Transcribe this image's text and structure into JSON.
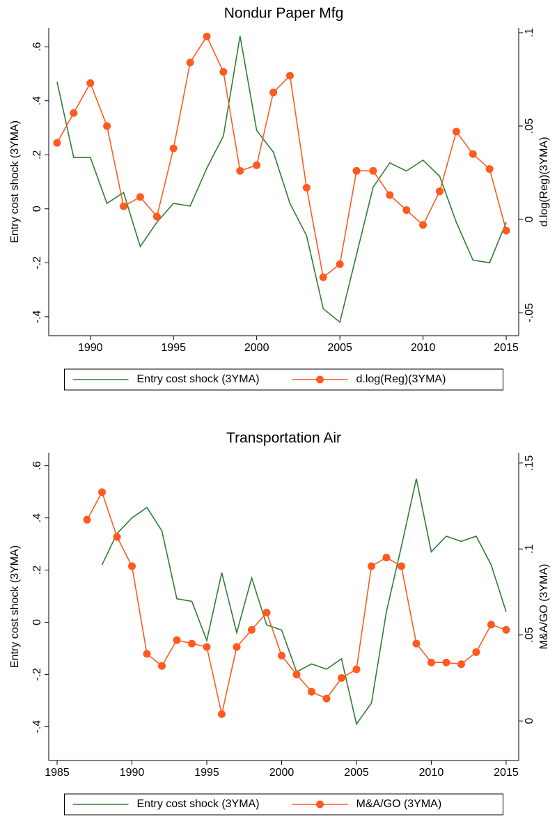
{
  "chart_data": [
    {
      "type": "line",
      "title": "Nondur Paper Mfg",
      "ylabel": "Entry cost shock (3YMA)",
      "y2label": "d.log(Reg)(3YMA)",
      "x": [
        1988,
        1989,
        1990,
        1991,
        1992,
        1993,
        1994,
        1995,
        1996,
        1997,
        1998,
        1999,
        2000,
        2001,
        2002,
        2003,
        2004,
        2005,
        2006,
        2007,
        2008,
        2009,
        2010,
        2011,
        2012,
        2013,
        2014,
        2015
      ],
      "series": [
        {
          "name": "Entry cost shock (3YMA)",
          "color": "#2e7d32",
          "marker": false,
          "axis": "y",
          "values": [
            0.47,
            0.19,
            0.19,
            0.02,
            0.06,
            -0.14,
            -0.05,
            0.02,
            0.01,
            0.15,
            0.27,
            0.64,
            0.29,
            0.21,
            0.02,
            -0.1,
            -0.37,
            -0.42,
            -0.17,
            0.08,
            0.17,
            0.14,
            0.18,
            0.12,
            -0.05,
            -0.19,
            -0.2,
            -0.05
          ]
        },
        {
          "name": "d.log(Reg)(3YMA)",
          "color": "#ff5a1f",
          "marker": true,
          "axis": "y2",
          "values": [
            0.041,
            0.057,
            0.073,
            0.05,
            0.007,
            0.012,
            0.0015,
            0.038,
            0.084,
            0.098,
            0.079,
            0.026,
            0.029,
            0.068,
            0.077,
            0.017,
            -0.031,
            -0.024,
            0.026,
            0.026,
            0.013,
            0.005,
            -0.003,
            0.015,
            0.047,
            0.035,
            0.027,
            -0.006
          ]
        }
      ],
      "xlim": [
        1987.5,
        2015.75
      ],
      "xticks": [
        1990,
        1995,
        2000,
        2005,
        2010,
        2015
      ],
      "ylim": [
        -0.47,
        0.67
      ],
      "yticks": [
        {
          "value": -0.4,
          "label": "-.4"
        },
        {
          "value": -0.2,
          "label": "-.2"
        },
        0,
        {
          "value": 0.2,
          "label": ".2"
        },
        {
          "value": 0.4,
          "label": ".4"
        },
        {
          "value": 0.6,
          "label": ".6"
        }
      ],
      "y2lim": [
        -0.0623,
        0.1026
      ],
      "y2ticks": [
        {
          "value": -0.05,
          "label": "-.05"
        },
        0,
        {
          "value": 0.05,
          "label": ".05"
        },
        {
          "value": 0.1,
          "label": ".1"
        }
      ],
      "legend": "bottom"
    },
    {
      "type": "line",
      "title": "Transportation Air",
      "ylabel": "Entry cost shock (3YMA)",
      "y2label": "M&A/GO (3YMA)",
      "x": [
        1987,
        1988,
        1989,
        1990,
        1991,
        1992,
        1993,
        1994,
        1995,
        1996,
        1997,
        1998,
        1999,
        2000,
        2001,
        2002,
        2003,
        2004,
        2005,
        2006,
        2007,
        2008,
        2009,
        2010,
        2011,
        2012,
        2013,
        2014,
        2015
      ],
      "series": [
        {
          "name": "Entry cost shock (3YMA)",
          "color": "#2e7d32",
          "marker": false,
          "axis": "y",
          "values": [
            null,
            0.22,
            0.34,
            0.4,
            0.44,
            0.35,
            0.09,
            0.08,
            -0.07,
            0.19,
            -0.04,
            0.17,
            -0.01,
            -0.03,
            -0.19,
            -0.16,
            -0.18,
            -0.14,
            -0.39,
            -0.31,
            0.04,
            0.29,
            0.55,
            0.27,
            0.33,
            0.31,
            0.33,
            0.22,
            0.04
          ]
        },
        {
          "name": "M&A/GO (3YMA)",
          "color": "#ff5a1f",
          "marker": true,
          "axis": "y2",
          "values": [
            0.117,
            0.133,
            0.107,
            0.09,
            0.039,
            0.032,
            0.047,
            0.045,
            0.043,
            0.004,
            0.043,
            0.053,
            0.063,
            0.038,
            0.027,
            0.017,
            0.013,
            0.025,
            0.03,
            0.09,
            0.095,
            0.09,
            0.045,
            0.034,
            0.034,
            0.033,
            0.04,
            0.056,
            0.053
          ]
        }
      ],
      "xlim": [
        1984.44,
        2015.84
      ],
      "xticks": [
        1985,
        1990,
        1995,
        2000,
        2005,
        2010,
        2015
      ],
      "ylim": [
        -0.53,
        0.65
      ],
      "yticks": [
        {
          "value": -0.4,
          "label": "-.4"
        },
        {
          "value": -0.2,
          "label": "-.2"
        },
        0,
        {
          "value": 0.2,
          "label": ".2"
        },
        {
          "value": 0.4,
          "label": ".4"
        },
        {
          "value": 0.6,
          "label": ".6"
        }
      ],
      "y2lim": [
        -0.023,
        0.156
      ],
      "y2ticks": [
        0,
        {
          "value": 0.05,
          "label": ".05"
        },
        {
          "value": 0.1,
          "label": ".1"
        },
        {
          "value": 0.15,
          "label": ".15"
        }
      ],
      "legend": "bottom"
    }
  ]
}
